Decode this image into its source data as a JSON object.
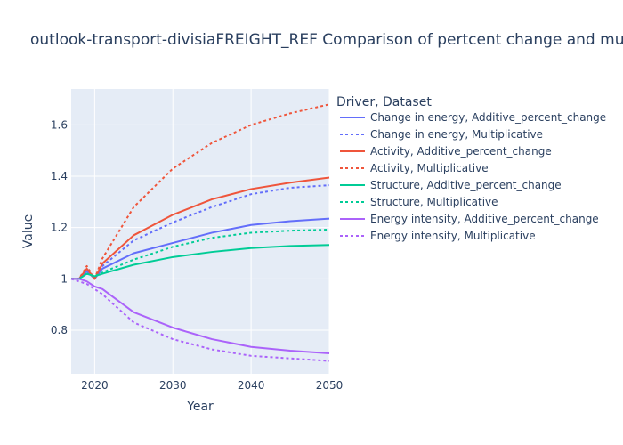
{
  "chart_data": {
    "type": "line",
    "title": "outlook-transport-divisiaFREIGHT_REF Comparison of pertcent change and multiplicative",
    "xlabel": "Year",
    "ylabel": "Value",
    "xlim": [
      2017,
      2050
    ],
    "ylim": [
      0.63,
      1.74
    ],
    "x_ticks": [
      2020,
      2030,
      2040,
      2050
    ],
    "x_tick_labels": [
      "2020",
      "2030",
      "2040",
      "2050"
    ],
    "y_ticks": [
      0.8,
      1,
      1.2,
      1.4,
      1.6
    ],
    "y_tick_labels": [
      "0.8",
      "1",
      "1.2",
      "1.4",
      "1.6"
    ],
    "grid": true,
    "legend": {
      "title": "Driver, Dataset",
      "placement": "right"
    },
    "x": [
      2017,
      2018,
      2019,
      2020,
      2021,
      2025,
      2030,
      2035,
      2040,
      2045,
      2050
    ],
    "series": [
      {
        "name": "Change in energy, Additive_percent_change",
        "color": "#636efa",
        "dash": "solid",
        "values": [
          1.0,
          1.0,
          1.03,
          1.0,
          1.04,
          1.1,
          1.14,
          1.18,
          1.21,
          1.225,
          1.235
        ]
      },
      {
        "name": "Change in energy, Multiplicative",
        "color": "#636efa",
        "dash": "dot",
        "values": [
          1.0,
          1.0,
          1.04,
          1.0,
          1.05,
          1.15,
          1.22,
          1.28,
          1.33,
          1.355,
          1.365
        ]
      },
      {
        "name": "Activity, Additive_percent_change",
        "color": "#ef553b",
        "dash": "solid",
        "values": [
          1.0,
          1.0,
          1.04,
          1.0,
          1.06,
          1.17,
          1.25,
          1.31,
          1.35,
          1.375,
          1.395
        ]
      },
      {
        "name": "Activity, Multiplicative",
        "color": "#ef553b",
        "dash": "dot",
        "values": [
          1.0,
          1.0,
          1.05,
          1.0,
          1.08,
          1.28,
          1.43,
          1.53,
          1.6,
          1.645,
          1.68
        ]
      },
      {
        "name": "Structure, Additive_percent_change",
        "color": "#00cc96",
        "dash": "solid",
        "values": [
          1.0,
          1.0,
          1.02,
          1.01,
          1.02,
          1.055,
          1.085,
          1.105,
          1.12,
          1.128,
          1.132
        ]
      },
      {
        "name": "Structure, Multiplicative",
        "color": "#00cc96",
        "dash": "dot",
        "values": [
          1.0,
          1.0,
          1.02,
          1.01,
          1.025,
          1.075,
          1.125,
          1.16,
          1.18,
          1.188,
          1.192
        ]
      },
      {
        "name": "Energy intensity, Additive_percent_change",
        "color": "#ab63fa",
        "dash": "solid",
        "values": [
          1.0,
          1.0,
          0.99,
          0.97,
          0.96,
          0.87,
          0.81,
          0.765,
          0.735,
          0.72,
          0.71
        ]
      },
      {
        "name": "Energy intensity, Multiplicative",
        "color": "#ab63fa",
        "dash": "dot",
        "values": [
          1.0,
          0.99,
          0.98,
          0.96,
          0.94,
          0.83,
          0.765,
          0.725,
          0.7,
          0.69,
          0.68
        ]
      }
    ]
  }
}
